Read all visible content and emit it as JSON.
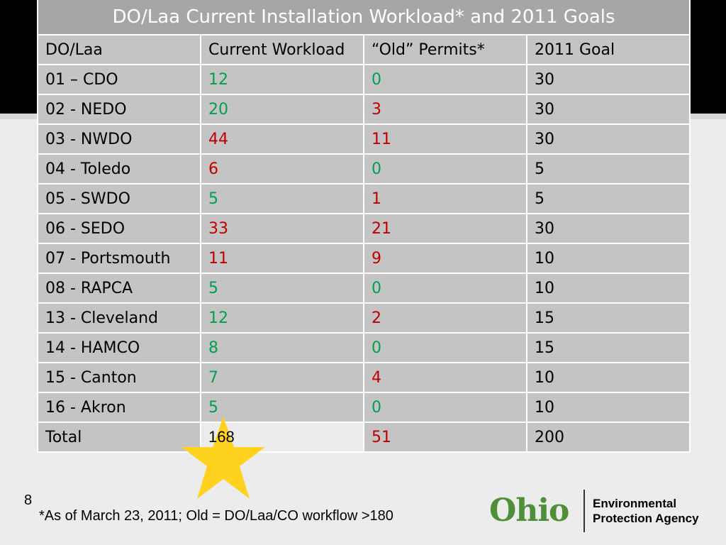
{
  "table": {
    "title": "DO/Laa Current Installation Workload* and 2011 Goals",
    "header": [
      "DO/Laa",
      "Current Workload",
      "“Old” Permits*",
      "2011 Goal"
    ],
    "rows": [
      [
        "01 – CDO",
        12,
        0,
        30
      ],
      [
        "02 - NEDO",
        20,
        3,
        30
      ],
      [
        "03 - NWDO",
        44,
        11,
        30
      ],
      [
        "04 - Toledo",
        6,
        0,
        5
      ],
      [
        "05 - SWDO",
        5,
        1,
        5
      ],
      [
        "06 - SEDO",
        33,
        21,
        30
      ],
      [
        "07 - Portsmouth",
        11,
        9,
        10
      ],
      [
        "08 - RAPCA",
        5,
        0,
        10
      ],
      [
        "13 - Cleveland",
        12,
        2,
        15
      ],
      [
        "14 - HAMCO",
        8,
        0,
        15
      ],
      [
        "15 - Canton",
        7,
        4,
        10
      ],
      [
        "16 - Akron",
        5,
        0,
        10
      ],
      [
        "Total",
        168,
        51,
        200
      ]
    ]
  },
  "footer": {
    "page_number": "8",
    "note": "*As of March 23, 2011; Old = DO/Laa/CO workflow >180"
  },
  "logo": {
    "name": "Ohio",
    "line1": "Environmental",
    "line2": "Protection Agency"
  }
}
